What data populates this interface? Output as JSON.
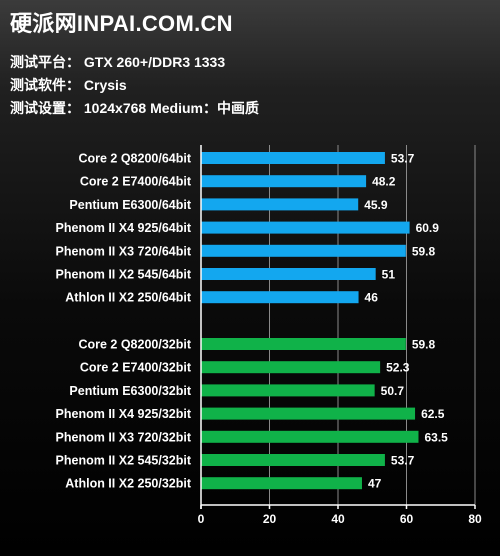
{
  "header": {
    "site": "硬派网INPAI.COM.CN",
    "info": [
      "测试平台： GTX 260+/DDR3 1333",
      "测试软件： Crysis",
      "测试设置： 1024x768 Medium：中画质"
    ]
  },
  "colors": {
    "series_64bit": "#13a7ef",
    "series_32bit": "#10b249",
    "axis": "#ffffff",
    "grid": "#8a8a8a"
  },
  "chart_data": {
    "type": "bar",
    "orientation": "horizontal",
    "xlim": [
      0,
      80
    ],
    "xticks": [
      0,
      20,
      40,
      60,
      80
    ],
    "grid": true,
    "legend": false,
    "groups": [
      {
        "color_key": "series_64bit",
        "categories": [
          "Core 2 Q8200/64bit",
          "Core 2 E7400/64bit",
          "Pentium E6300/64bit",
          "Phenom II X4 925/64bit",
          "Phenom II X3 720/64bit",
          "Phenom II X2 545/64bit",
          "Athlon II X2 250/64bit"
        ],
        "values": [
          53.7,
          48.2,
          45.9,
          60.9,
          59.8,
          51,
          46
        ]
      },
      {
        "color_key": "series_32bit",
        "categories": [
          "Core 2 Q8200/32bit",
          "Core 2 E7400/32bit",
          "Pentium E6300/32bit",
          "Phenom II X4 925/32bit",
          "Phenom II X3 720/32bit",
          "Phenom II X2 545/32bit",
          "Athlon II X2 250/32bit"
        ],
        "values": [
          59.8,
          52.3,
          50.7,
          62.5,
          63.5,
          53.7,
          47
        ]
      }
    ]
  }
}
